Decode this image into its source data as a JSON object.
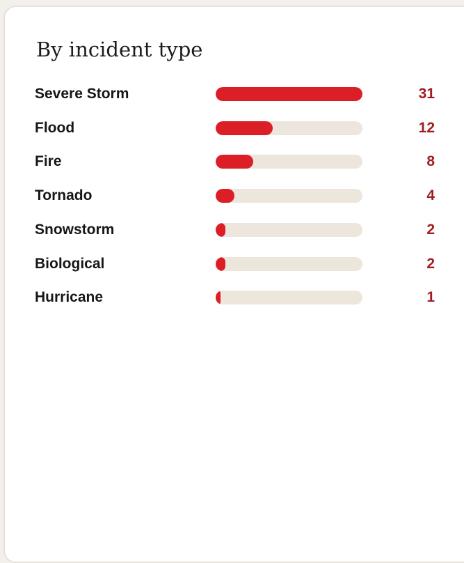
{
  "card": {
    "title": "By incident type"
  },
  "colors": {
    "bar_fill": "#dc1f26",
    "bar_track": "#ede6dc",
    "value_text": "#a21d22"
  },
  "chart_data": {
    "type": "bar",
    "orientation": "horizontal",
    "title": "By incident type",
    "categories": [
      "Severe Storm",
      "Flood",
      "Fire",
      "Tornado",
      "Snowstorm",
      "Biological",
      "Hurricane"
    ],
    "values": [
      31,
      12,
      8,
      4,
      2,
      2,
      1
    ],
    "xlim": [
      0,
      31
    ],
    "value_labels": [
      "31",
      "12",
      "8",
      "4",
      "2",
      "2",
      "1"
    ]
  }
}
